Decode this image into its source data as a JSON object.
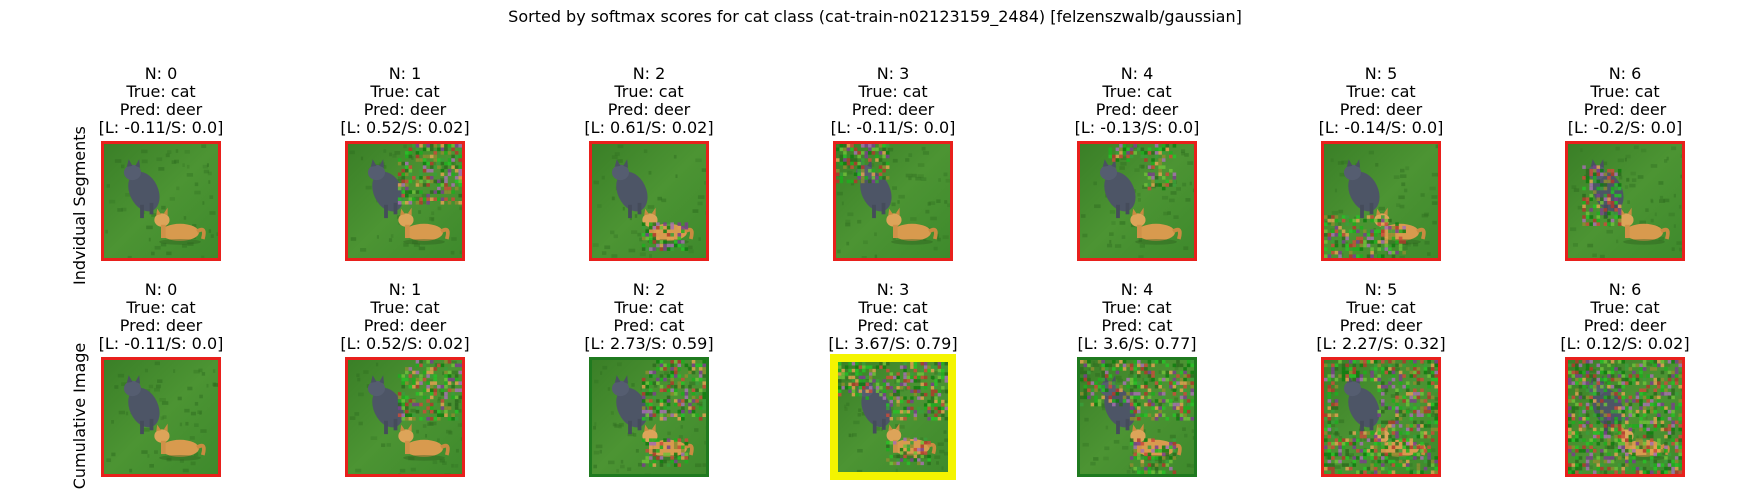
{
  "title": "Sorted by softmax scores for cat class (cat-train-n02123159_2484) [felzenszwalb/gaussian]",
  "rows": [
    {
      "label": "Indvidual Segments",
      "items": [
        {
          "n": "N: 0",
          "true": "True: cat",
          "pred": "Pred: deer",
          "ls": "[L: -0.11/S: 0.0]",
          "border": "#e8201c",
          "noise": "none"
        },
        {
          "n": "N: 1",
          "true": "True: cat",
          "pred": "Pred: deer",
          "ls": "[L: 0.52/S: 0.02]",
          "border": "#e8201c",
          "noise": "top-right"
        },
        {
          "n": "N: 2",
          "true": "True: cat",
          "pred": "Pred: deer",
          "ls": "[L: 0.61/S: 0.02]",
          "border": "#e8201c",
          "noise": "cat"
        },
        {
          "n": "N: 3",
          "true": "True: cat",
          "pred": "Pred: deer",
          "ls": "[L: -0.11/S: 0.0]",
          "border": "#e8201c",
          "noise": "top-left"
        },
        {
          "n": "N: 4",
          "true": "True: cat",
          "pred": "Pred: deer",
          "ls": "[L: -0.13/S: 0.0]",
          "border": "#e8201c",
          "noise": "top-band"
        },
        {
          "n": "N: 5",
          "true": "True: cat",
          "pred": "Pred: deer",
          "ls": "[L: -0.14/S: 0.0]",
          "border": "#e8201c",
          "noise": "bottom"
        },
        {
          "n": "N: 6",
          "true": "True: cat",
          "pred": "Pred: deer",
          "ls": "[L: -0.2/S: 0.0]",
          "border": "#e8201c",
          "noise": "dark-cat"
        }
      ]
    },
    {
      "label": "Cumulative Image",
      "items": [
        {
          "n": "N: 0",
          "true": "True: cat",
          "pred": "Pred: deer",
          "ls": "[L: -0.11/S: 0.0]",
          "border": "#e8201c",
          "noise": "none"
        },
        {
          "n": "N: 1",
          "true": "True: cat",
          "pred": "Pred: deer",
          "ls": "[L: 0.52/S: 0.02]",
          "border": "#e8201c",
          "noise": "top-right"
        },
        {
          "n": "N: 2",
          "true": "True: cat",
          "pred": "Pred: cat",
          "ls": "[L: 2.73/S: 0.59]",
          "border": "#1f7a1f",
          "noise": "cum2"
        },
        {
          "n": "N: 3",
          "true": "True: cat",
          "pred": "Pred: cat",
          "ls": "[L: 3.67/S: 0.79]",
          "border": "#f4f400",
          "noise": "cum3"
        },
        {
          "n": "N: 4",
          "true": "True: cat",
          "pred": "Pred: cat",
          "ls": "[L: 3.6/S: 0.77]",
          "border": "#1f7a1f",
          "noise": "cum4"
        },
        {
          "n": "N: 5",
          "true": "True: cat",
          "pred": "Pred: deer",
          "ls": "[L: 2.27/S: 0.32]",
          "border": "#e8201c",
          "noise": "cum5"
        },
        {
          "n": "N: 6",
          "true": "True: cat",
          "pred": "Pred: deer",
          "ls": "[L: 0.12/S: 0.02]",
          "border": "#e8201c",
          "noise": "cum6"
        }
      ]
    }
  ]
}
